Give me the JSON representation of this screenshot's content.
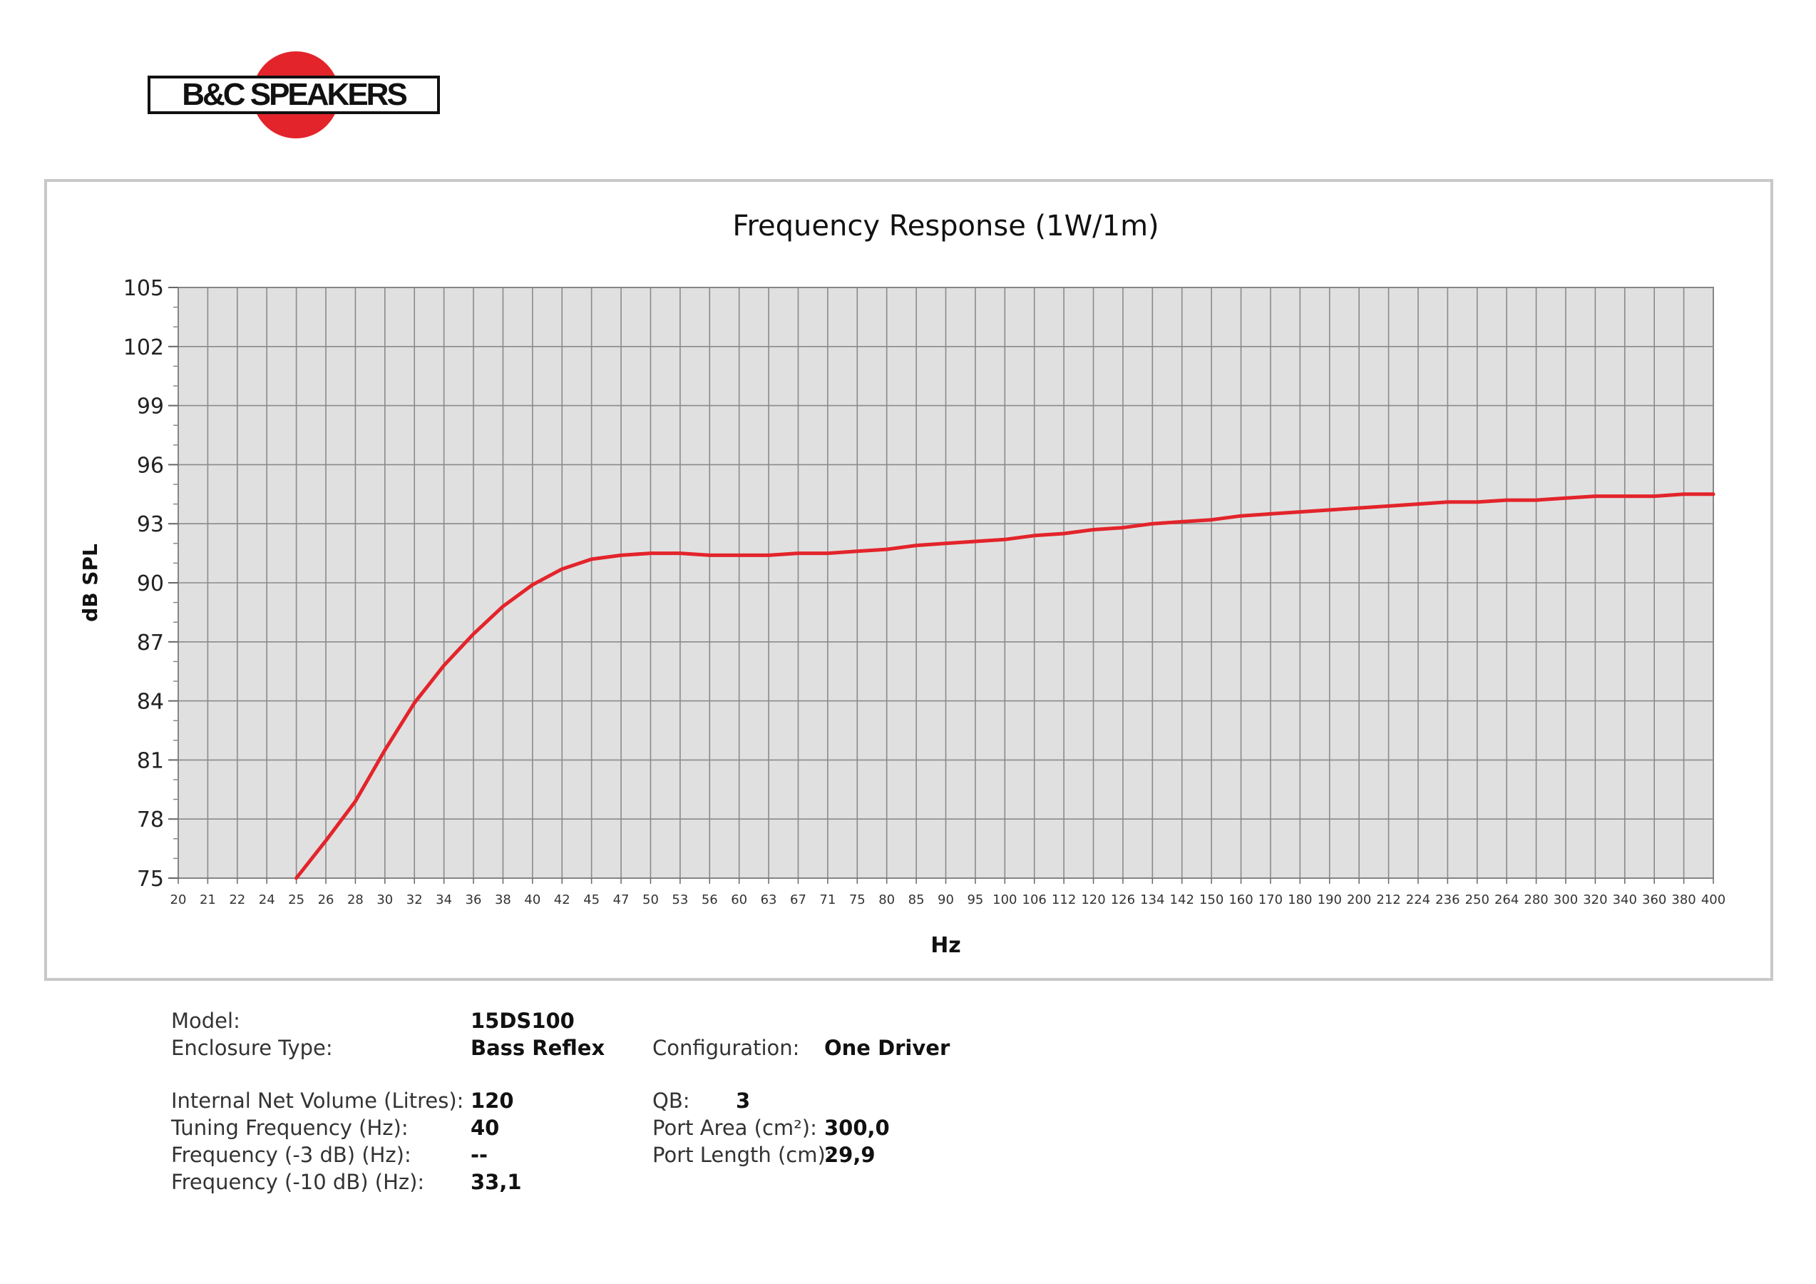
{
  "logo": {
    "text": "B&C SPEAKERS",
    "circle_color": "#e3242b"
  },
  "chart_data": {
    "type": "line",
    "title": "Frequency Response (1W/1m)",
    "xlabel": "Hz",
    "ylabel": "dB SPL",
    "x_scale": "log",
    "xlim": [
      20,
      400
    ],
    "ylim": [
      75,
      105
    ],
    "x_ticks": [
      20,
      21,
      22,
      24,
      25,
      26,
      28,
      30,
      32,
      34,
      36,
      38,
      40,
      42,
      45,
      47,
      50,
      53,
      56,
      60,
      63,
      67,
      71,
      75,
      80,
      85,
      90,
      95,
      100,
      106,
      112,
      120,
      126,
      134,
      142,
      150,
      160,
      170,
      180,
      190,
      200,
      212,
      224,
      236,
      250,
      264,
      280,
      300,
      320,
      340,
      360,
      380,
      400
    ],
    "y_ticks": [
      75,
      78,
      81,
      84,
      87,
      90,
      93,
      96,
      99,
      102,
      105
    ],
    "y_minor_step": 1,
    "grid": true,
    "line_color": "#e3242b",
    "plot_background": "#e0e0e0",
    "series": [
      {
        "x": [
          25,
          26,
          28,
          30,
          32,
          34,
          36,
          38,
          40,
          42,
          45,
          47,
          50,
          53,
          56,
          60,
          63,
          67,
          71,
          75,
          80,
          85,
          90,
          95,
          100,
          106,
          112,
          120,
          126,
          134,
          142,
          150,
          160,
          170,
          180,
          190,
          200,
          212,
          224,
          236,
          250,
          264,
          280,
          300,
          320,
          340,
          360,
          380,
          400
        ],
        "y": [
          75.0,
          76.9,
          78.9,
          81.5,
          83.9,
          85.8,
          87.4,
          88.8,
          89.9,
          90.7,
          91.2,
          91.4,
          91.5,
          91.5,
          91.4,
          91.4,
          91.4,
          91.5,
          91.5,
          91.6,
          91.7,
          91.9,
          92.0,
          92.1,
          92.2,
          92.4,
          92.5,
          92.7,
          92.8,
          93.0,
          93.1,
          93.2,
          93.4,
          93.5,
          93.6,
          93.7,
          93.8,
          93.9,
          94.0,
          94.1,
          94.1,
          94.2,
          94.2,
          94.3,
          94.4,
          94.4,
          94.4,
          94.5,
          94.5
        ]
      }
    ]
  },
  "specs": {
    "model_label": "Model:",
    "model_value": "15DS100",
    "enclosure_label": "Enclosure Type:",
    "enclosure_value": "Bass Reflex",
    "configuration_label": "Configuration:",
    "configuration_value": "One Driver",
    "volume_label": "Internal Net Volume (Litres):",
    "volume_value": "120",
    "qb_label": "QB:",
    "qb_value": "3",
    "tuning_label": "Tuning Frequency (Hz):",
    "tuning_value": "40",
    "port_area_label": "Port Area (cm²):",
    "port_area_value": "300,0",
    "f3_label": "Frequency (-3 dB) (Hz):",
    "f3_value": "--",
    "port_length_label": "Port Length (cm):",
    "port_length_value": "29,9",
    "f10_label": "Frequency (-10 dB) (Hz):",
    "f10_value": "33,1"
  }
}
